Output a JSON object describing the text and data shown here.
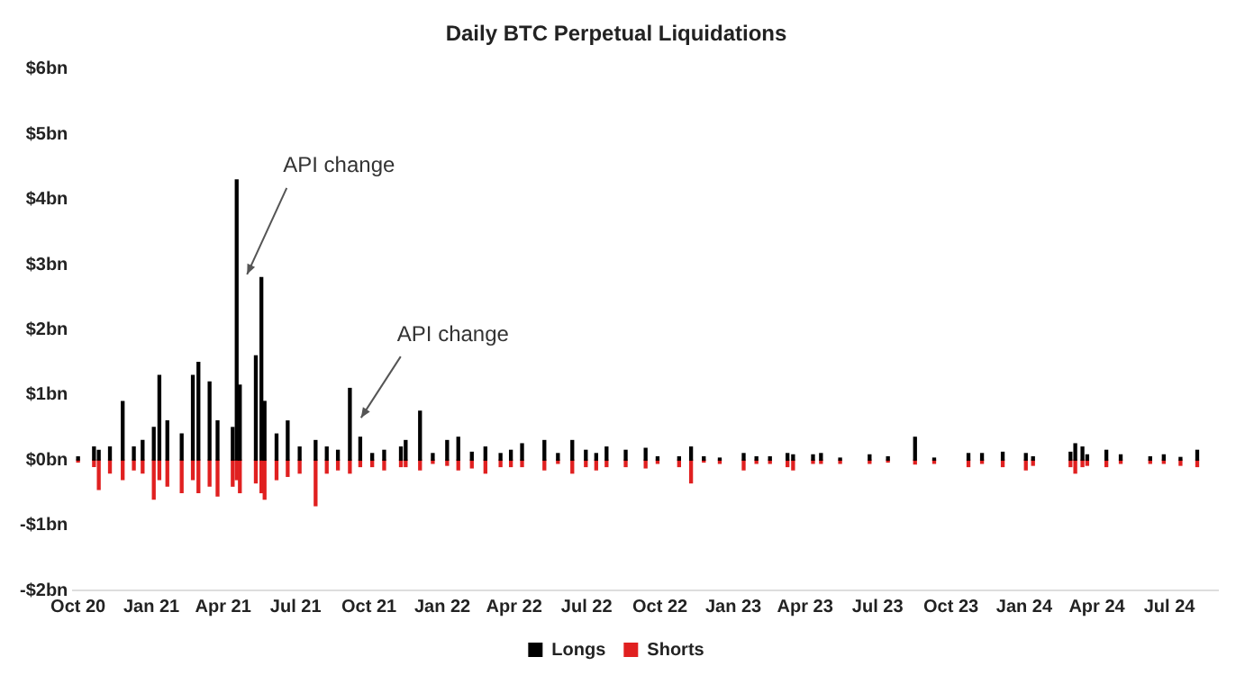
{
  "chart_data": {
    "type": "bar",
    "title": "Daily BTC Perpetual Liquidations",
    "x": [
      "2020-10-01",
      "2020-10-21",
      "2020-10-27",
      "2020-11-10",
      "2020-11-26",
      "2020-12-10",
      "2020-12-21",
      "2021-01-04",
      "2021-01-11",
      "2021-01-21",
      "2021-02-08",
      "2021-02-22",
      "2021-03-01",
      "2021-03-15",
      "2021-03-25",
      "2021-04-13",
      "2021-04-18",
      "2021-04-22",
      "2021-05-12",
      "2021-05-19",
      "2021-05-23",
      "2021-06-07",
      "2021-06-21",
      "2021-07-06",
      "2021-07-26",
      "2021-08-09",
      "2021-08-23",
      "2021-09-07",
      "2021-09-20",
      "2021-10-05",
      "2021-10-20",
      "2021-11-10",
      "2021-11-16",
      "2021-12-04",
      "2021-12-20",
      "2022-01-07",
      "2022-01-21",
      "2022-02-07",
      "2022-02-24",
      "2022-03-15",
      "2022-03-28",
      "2022-04-11",
      "2022-05-09",
      "2022-05-26",
      "2022-06-13",
      "2022-06-30",
      "2022-07-13",
      "2022-07-26",
      "2022-08-19",
      "2022-09-13",
      "2022-09-28",
      "2022-10-25",
      "2022-11-09",
      "2022-11-25",
      "2022-12-15",
      "2023-01-14",
      "2023-01-30",
      "2023-02-16",
      "2023-03-10",
      "2023-03-17",
      "2023-04-11",
      "2023-04-21",
      "2023-05-15",
      "2023-06-21",
      "2023-07-14",
      "2023-08-17",
      "2023-09-10",
      "2023-10-23",
      "2023-11-09",
      "2023-12-05",
      "2024-01-03",
      "2024-01-12",
      "2024-02-28",
      "2024-03-05",
      "2024-03-14",
      "2024-03-20",
      "2024-04-13",
      "2024-05-01",
      "2024-06-07",
      "2024-06-24",
      "2024-07-15",
      "2024-08-05"
    ],
    "series": [
      {
        "name": "Longs",
        "color": "#000000",
        "values": [
          0.05,
          0.2,
          0.15,
          0.2,
          0.9,
          0.2,
          0.3,
          0.5,
          1.3,
          0.6,
          0.4,
          1.3,
          1.5,
          1.2,
          0.6,
          0.5,
          4.3,
          1.15,
          1.6,
          2.8,
          0.9,
          0.4,
          0.6,
          0.2,
          0.3,
          0.2,
          0.15,
          1.1,
          0.35,
          0.1,
          0.15,
          0.2,
          0.3,
          0.75,
          0.1,
          0.3,
          0.35,
          0.12,
          0.2,
          0.1,
          0.15,
          0.25,
          0.3,
          0.1,
          0.3,
          0.15,
          0.1,
          0.2,
          0.15,
          0.18,
          0.05,
          0.05,
          0.2,
          0.05,
          0.03,
          0.1,
          0.05,
          0.05,
          0.1,
          0.08,
          0.08,
          0.1,
          0.03,
          0.08,
          0.05,
          0.35,
          0.03,
          0.1,
          0.1,
          0.12,
          0.1,
          0.05,
          0.12,
          0.25,
          0.2,
          0.08,
          0.15,
          0.08,
          0.05,
          0.08,
          0.04,
          0.15
        ]
      },
      {
        "name": "Shorts",
        "color": "#e02020",
        "values": [
          -0.03,
          -0.1,
          -0.45,
          -0.2,
          -0.3,
          -0.15,
          -0.2,
          -0.6,
          -0.3,
          -0.4,
          -0.5,
          -0.3,
          -0.5,
          -0.4,
          -0.55,
          -0.4,
          -0.3,
          -0.5,
          -0.35,
          -0.5,
          -0.6,
          -0.3,
          -0.25,
          -0.2,
          -0.7,
          -0.2,
          -0.15,
          -0.2,
          -0.1,
          -0.1,
          -0.15,
          -0.1,
          -0.1,
          -0.15,
          -0.05,
          -0.08,
          -0.15,
          -0.12,
          -0.2,
          -0.1,
          -0.1,
          -0.1,
          -0.15,
          -0.05,
          -0.2,
          -0.1,
          -0.15,
          -0.1,
          -0.1,
          -0.12,
          -0.05,
          -0.1,
          -0.35,
          -0.03,
          -0.05,
          -0.15,
          -0.05,
          -0.05,
          -0.1,
          -0.15,
          -0.05,
          -0.05,
          -0.05,
          -0.05,
          -0.03,
          -0.06,
          -0.05,
          -0.1,
          -0.05,
          -0.1,
          -0.15,
          -0.08,
          -0.1,
          -0.2,
          -0.1,
          -0.08,
          -0.1,
          -0.05,
          -0.05,
          -0.05,
          -0.08,
          -0.1
        ]
      }
    ],
    "xlim": [
      "2020-09-25",
      "2024-08-31"
    ],
    "xticks": [
      {
        "value": "2020-10-01",
        "label": "Oct 20"
      },
      {
        "value": "2021-01-01",
        "label": "Jan 21"
      },
      {
        "value": "2021-04-01",
        "label": "Apr 21"
      },
      {
        "value": "2021-07-01",
        "label": "Jul 21"
      },
      {
        "value": "2021-10-01",
        "label": "Oct 21"
      },
      {
        "value": "2022-01-01",
        "label": "Jan 22"
      },
      {
        "value": "2022-04-01",
        "label": "Apr 22"
      },
      {
        "value": "2022-07-01",
        "label": "Jul 22"
      },
      {
        "value": "2022-10-01",
        "label": "Oct 22"
      },
      {
        "value": "2023-01-01",
        "label": "Jan 23"
      },
      {
        "value": "2023-04-01",
        "label": "Apr 23"
      },
      {
        "value": "2023-07-01",
        "label": "Jul 23"
      },
      {
        "value": "2023-10-01",
        "label": "Oct 23"
      },
      {
        "value": "2024-01-01",
        "label": "Jan 24"
      },
      {
        "value": "2024-04-01",
        "label": "Apr 24"
      },
      {
        "value": "2024-07-01",
        "label": "Jul 24"
      }
    ],
    "ylim": [
      -2,
      6
    ],
    "yticks": [
      {
        "value": -2,
        "label": "-$2bn"
      },
      {
        "value": -1,
        "label": "-$1bn"
      },
      {
        "value": 0,
        "label": "$0bn"
      },
      {
        "value": 1,
        "label": "$1bn"
      },
      {
        "value": 2,
        "label": "$2bn"
      },
      {
        "value": 3,
        "label": "$3bn"
      },
      {
        "value": 4,
        "label": "$4bn"
      },
      {
        "value": 5,
        "label": "$5bn"
      },
      {
        "value": 6,
        "label": "$6bn"
      }
    ],
    "legend": "bottom",
    "stacked": true,
    "annotations": [
      {
        "text": "API change",
        "x": "2021-05-01",
        "y": 2.85
      },
      {
        "text": "API change",
        "x": "2021-09-21",
        "y": 0.65
      }
    ]
  }
}
